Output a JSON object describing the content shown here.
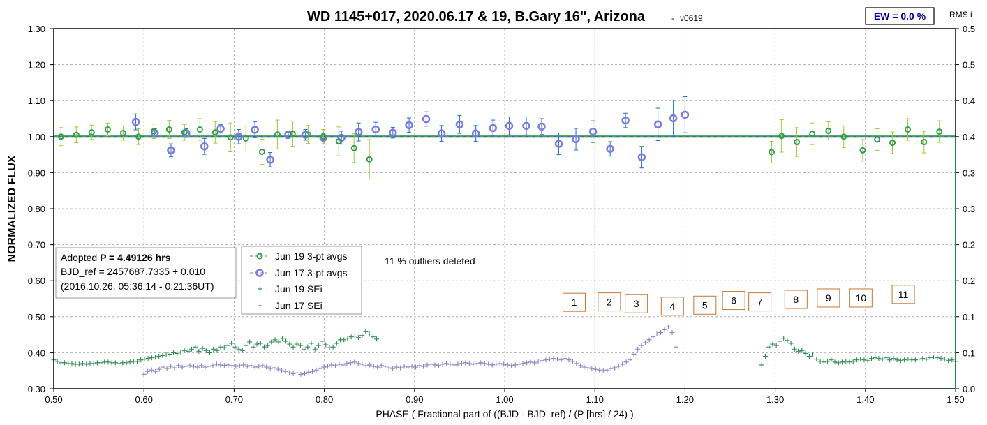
{
  "chart_data": {
    "type": "scatter",
    "title": "WD 1145+017, 2020.06.17 & 19, B.Gary 16\", Arizona",
    "version": "v0619",
    "ew_label": "EW = 0.0 %",
    "rms_label": "RMS i",
    "xlabel": "PHASE ( Fractional part of ((BJD - BJD_ref) / (P [hrs] / 24) )",
    "ylabel": "NORMALIZED FLUX",
    "xlim": [
      0.5,
      1.5
    ],
    "ylim": [
      0.3,
      1.3
    ],
    "y2lim": [
      0.0,
      0.5
    ],
    "grid": true,
    "x_ticks": [
      "0.50",
      "0.60",
      "0.70",
      "0.80",
      "0.90",
      "1.00",
      "1.10",
      "1.20",
      "1.30",
      "1.40",
      "1.50"
    ],
    "y_ticks": [
      "0.30",
      "0.40",
      "0.50",
      "0.60",
      "0.70",
      "0.80",
      "0.90",
      "1.00",
      "1.10",
      "1.20",
      "1.30"
    ],
    "y2_ticks": [
      "0.0",
      "0.1",
      "0.1",
      "0.2",
      "0.2",
      "0.3",
      "0.3",
      "0.4",
      "0.4",
      "0.5",
      "0.5"
    ],
    "info_box": {
      "line1_prefix": "Adopted ",
      "line1_bold": "P = 4.49126 hrs",
      "line2": "BJD_ref = 2457687.7335 + 0.010",
      "line3": "(2016.10.26, 05:36:14 - 0:21:36UT)"
    },
    "annotation": "11 % outliers deleted",
    "colors": {
      "jun19": "#2e9e50",
      "jun17": "#7a7ae8",
      "sei19": "#2e8b57",
      "sei17": "#8a7fc0",
      "errbar19": "#9acd32",
      "errbar17": "#1f6fd1",
      "ref_line": "#1e8a3c",
      "box": "#c87533"
    },
    "series": [
      {
        "name": "Jun 19 3-pt avgs",
        "marker": "open-circle",
        "points": [
          [
            0.508,
            1.0,
            0.025
          ],
          [
            0.525,
            1.005,
            0.022
          ],
          [
            0.542,
            1.012,
            0.02
          ],
          [
            0.56,
            1.02,
            0.018
          ],
          [
            0.577,
            1.01,
            0.02
          ],
          [
            0.594,
            1.0,
            0.022
          ],
          [
            0.611,
            1.015,
            0.02
          ],
          [
            0.628,
            1.02,
            0.025
          ],
          [
            0.645,
            1.012,
            0.022
          ],
          [
            0.662,
            1.02,
            0.03
          ],
          [
            0.679,
            1.012,
            0.03
          ],
          [
            0.696,
            0.998,
            0.04
          ],
          [
            0.713,
            0.995,
            0.035
          ],
          [
            0.731,
            0.958,
            0.035
          ],
          [
            0.748,
            1.006,
            0.04
          ],
          [
            0.765,
            1.008,
            0.035
          ],
          [
            0.782,
            1.006,
            0.025
          ],
          [
            0.799,
            1.0,
            0.02
          ],
          [
            0.816,
            0.987,
            0.04
          ],
          [
            0.833,
            0.968,
            0.04
          ],
          [
            0.85,
            0.937,
            0.055
          ],
          [
            1.296,
            0.957,
            0.03
          ],
          [
            1.307,
            1.002,
            0.045
          ],
          [
            1.324,
            0.985,
            0.04
          ],
          [
            1.341,
            1.008,
            0.03
          ],
          [
            1.359,
            1.016,
            0.025
          ],
          [
            1.376,
            1.0,
            0.03
          ],
          [
            1.397,
            0.962,
            0.03
          ],
          [
            1.413,
            0.992,
            0.03
          ],
          [
            1.43,
            0.983,
            0.03
          ],
          [
            1.447,
            1.02,
            0.03
          ],
          [
            1.465,
            0.985,
            0.03
          ],
          [
            1.482,
            1.014,
            0.03
          ]
        ]
      },
      {
        "name": "Jun 17 3-pt avgs",
        "marker": "open-circle",
        "points": [
          [
            0.591,
            1.041,
            0.022
          ],
          [
            0.612,
            1.01,
            0.012
          ],
          [
            0.63,
            0.962,
            0.018
          ],
          [
            0.647,
            1.01,
            0.012
          ],
          [
            0.667,
            0.973,
            0.022
          ],
          [
            0.685,
            1.022,
            0.012
          ],
          [
            0.705,
            1.0,
            0.02
          ],
          [
            0.723,
            1.019,
            0.022
          ],
          [
            0.74,
            0.936,
            0.02
          ],
          [
            0.76,
            1.005,
            0.01
          ],
          [
            0.779,
            1.005,
            0.015
          ],
          [
            0.799,
            0.997,
            0.012
          ],
          [
            0.819,
            0.997,
            0.018
          ],
          [
            0.838,
            1.013,
            0.025
          ],
          [
            0.857,
            1.02,
            0.02
          ],
          [
            0.876,
            1.011,
            0.015
          ],
          [
            0.894,
            1.032,
            0.02
          ],
          [
            0.913,
            1.049,
            0.02
          ],
          [
            0.93,
            1.009,
            0.022
          ],
          [
            0.95,
            1.034,
            0.025
          ],
          [
            0.968,
            1.009,
            0.022
          ],
          [
            0.987,
            1.024,
            0.022
          ],
          [
            1.005,
            1.03,
            0.025
          ],
          [
            1.024,
            1.03,
            0.025
          ],
          [
            1.041,
            1.028,
            0.022
          ],
          [
            1.06,
            0.98,
            0.03
          ],
          [
            1.079,
            0.993,
            0.03
          ],
          [
            1.098,
            1.014,
            0.03
          ],
          [
            1.117,
            0.966,
            0.02
          ],
          [
            1.134,
            1.045,
            0.02
          ],
          [
            1.152,
            0.943,
            0.03
          ],
          [
            1.17,
            1.034,
            0.045
          ],
          [
            1.187,
            1.051,
            0.05
          ],
          [
            1.2,
            1.061,
            0.05
          ]
        ]
      },
      {
        "name": "Jun 19 SEi",
        "marker": "plus",
        "axis": "right",
        "segments": [
          {
            "x_start": 0.5,
            "x_end": 0.858,
            "y": [
              0.04,
              0.038,
              0.036,
              0.036,
              0.035,
              0.035,
              0.034,
              0.034,
              0.035,
              0.034,
              0.035,
              0.035,
              0.036,
              0.036,
              0.037,
              0.037,
              0.036,
              0.036,
              0.035,
              0.036,
              0.036,
              0.037,
              0.038,
              0.038,
              0.04,
              0.041,
              0.042,
              0.043,
              0.044,
              0.045,
              0.046,
              0.047,
              0.048,
              0.05,
              0.049,
              0.051,
              0.053,
              0.052,
              0.055,
              0.058,
              0.052,
              0.056,
              0.053,
              0.05,
              0.055,
              0.053,
              0.058,
              0.057,
              0.06,
              0.063,
              0.058,
              0.055,
              0.053,
              0.06,
              0.065,
              0.058,
              0.062,
              0.063,
              0.058,
              0.06,
              0.065,
              0.068,
              0.065,
              0.07,
              0.066,
              0.062,
              0.058,
              0.062,
              0.06,
              0.055,
              0.058,
              0.063,
              0.055,
              0.06,
              0.066,
              0.061,
              0.057,
              0.058,
              0.063,
              0.068,
              0.068,
              0.07,
              0.072,
              0.073,
              0.071,
              0.074,
              0.079,
              0.076,
              0.072,
              0.069
            ]
          },
          {
            "x_start": 1.285,
            "x_end": 1.5,
            "y": [
              0.033,
              0.045,
              0.058,
              0.062,
              0.06,
              0.066,
              0.07,
              0.067,
              0.063,
              0.055,
              0.052,
              0.053,
              0.049,
              0.045,
              0.047,
              0.041,
              0.038,
              0.037,
              0.038,
              0.04,
              0.037,
              0.036,
              0.037,
              0.038,
              0.037,
              0.038,
              0.04,
              0.041,
              0.04,
              0.039,
              0.042,
              0.043,
              0.042,
              0.041,
              0.043,
              0.04,
              0.042,
              0.04,
              0.039,
              0.04,
              0.041,
              0.04,
              0.04,
              0.041,
              0.042,
              0.041,
              0.043,
              0.044,
              0.043,
              0.042,
              0.041,
              0.039,
              0.04,
              0.038
            ]
          }
        ]
      },
      {
        "name": "Jun 17 SEi",
        "marker": "plus",
        "axis": "right",
        "segments": [
          {
            "x_start": 0.6,
            "x_end": 1.19,
            "y": [
              0.02,
              0.024,
              0.026,
              0.024,
              0.027,
              0.03,
              0.028,
              0.031,
              0.029,
              0.032,
              0.03,
              0.031,
              0.032,
              0.031,
              0.03,
              0.032,
              0.03,
              0.031,
              0.032,
              0.034,
              0.033,
              0.032,
              0.033,
              0.032,
              0.031,
              0.032,
              0.033,
              0.031,
              0.032,
              0.03,
              0.031,
              0.032,
              0.03,
              0.028,
              0.029,
              0.027,
              0.025,
              0.024,
              0.022,
              0.021,
              0.022,
              0.02,
              0.021,
              0.023,
              0.024,
              0.026,
              0.028,
              0.03,
              0.031,
              0.033,
              0.032,
              0.034,
              0.033,
              0.035,
              0.036,
              0.037,
              0.035,
              0.034,
              0.032,
              0.033,
              0.031,
              0.03,
              0.032,
              0.031,
              0.029,
              0.028,
              0.03,
              0.029,
              0.031,
              0.03,
              0.031,
              0.03,
              0.032,
              0.031,
              0.033,
              0.034,
              0.033,
              0.032,
              0.034,
              0.035,
              0.034,
              0.033,
              0.034,
              0.035,
              0.036,
              0.035,
              0.034,
              0.035,
              0.036,
              0.035,
              0.034,
              0.033,
              0.034,
              0.035,
              0.034,
              0.033,
              0.032,
              0.033,
              0.034,
              0.035,
              0.036,
              0.037,
              0.036,
              0.038,
              0.039,
              0.04,
              0.041,
              0.042,
              0.041,
              0.04,
              0.042,
              0.04,
              0.038,
              0.035,
              0.032,
              0.03,
              0.029,
              0.028,
              0.027,
              0.026,
              0.025,
              0.026,
              0.028,
              0.029,
              0.031,
              0.034,
              0.037,
              0.04,
              0.048,
              0.055,
              0.06,
              0.064,
              0.068,
              0.072,
              0.076,
              0.078,
              0.082,
              0.086,
              0.078,
              0.058
            ]
          }
        ]
      }
    ],
    "reference_line": 1.0,
    "event_boxes": [
      {
        "label": "1",
        "x": 1.077,
        "y": 0.54
      },
      {
        "label": "2",
        "x": 1.116,
        "y": 0.541
      },
      {
        "label": "3",
        "x": 1.146,
        "y": 0.536
      },
      {
        "label": "4",
        "x": 1.186,
        "y": 0.529
      },
      {
        "label": "5",
        "x": 1.222,
        "y": 0.532
      },
      {
        "label": "6",
        "x": 1.254,
        "y": 0.545
      },
      {
        "label": "7",
        "x": 1.283,
        "y": 0.541
      },
      {
        "label": "8",
        "x": 1.323,
        "y": 0.548
      },
      {
        "label": "9",
        "x": 1.359,
        "y": 0.552
      },
      {
        "label": "10",
        "x": 1.395,
        "y": 0.552
      },
      {
        "label": "11",
        "x": 1.442,
        "y": 0.562
      }
    ]
  }
}
